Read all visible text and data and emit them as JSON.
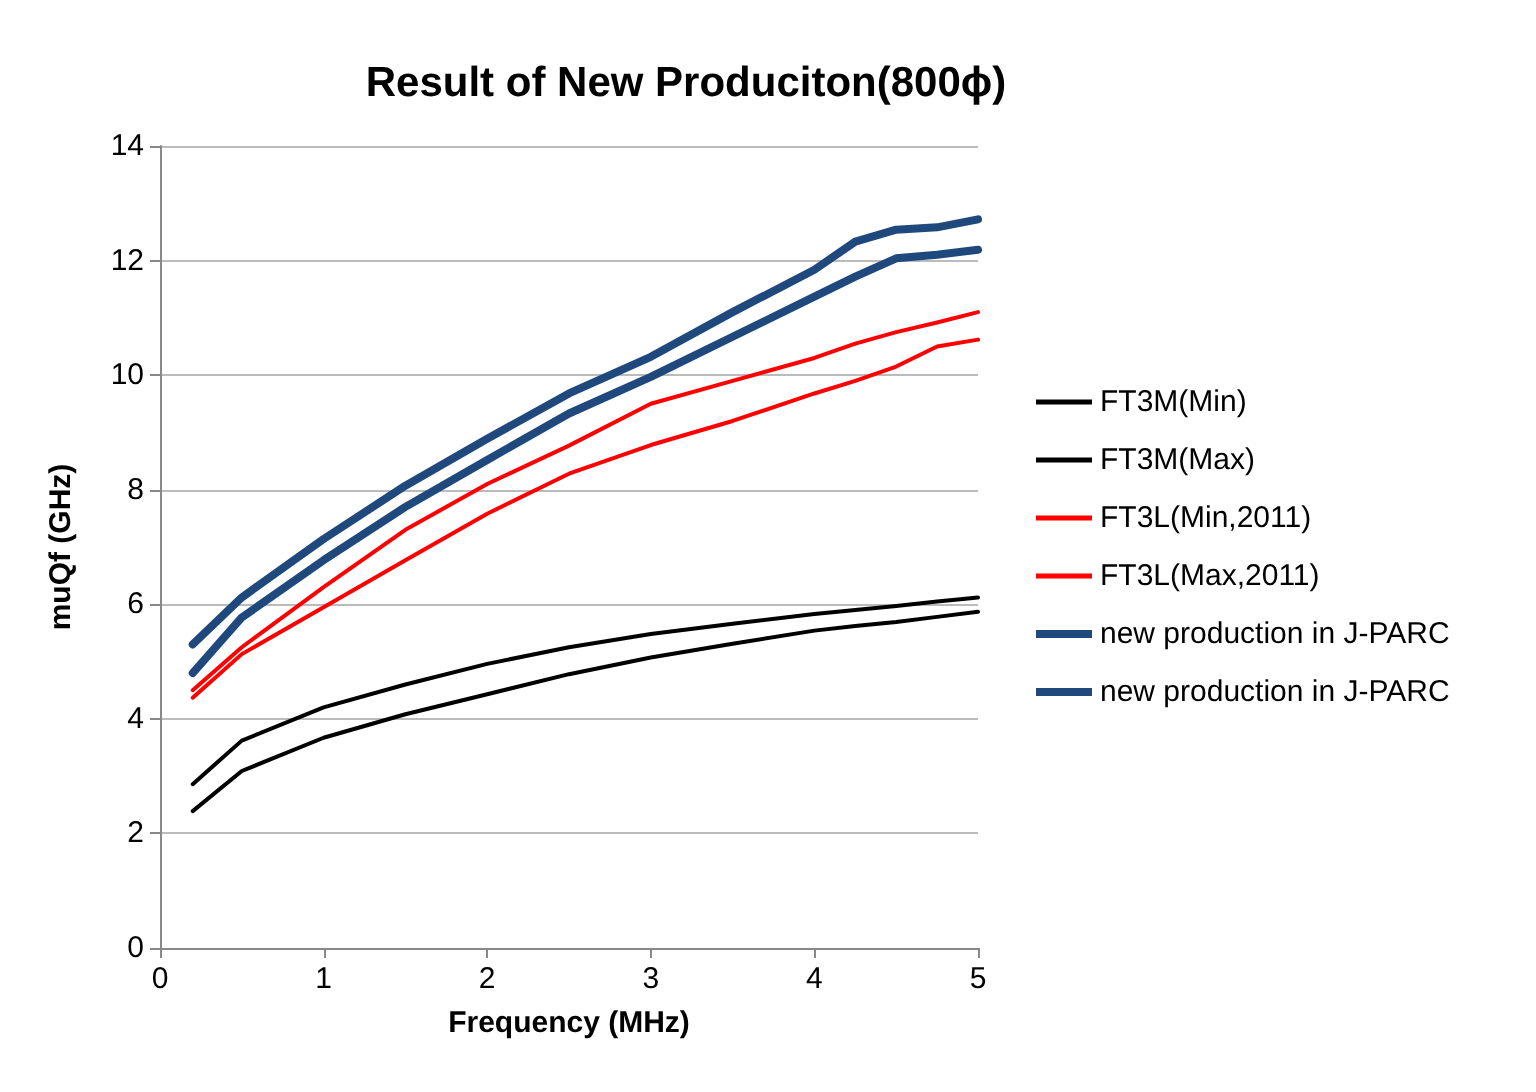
{
  "chart_data": {
    "type": "line",
    "title": "Result of New Produciton(800ϕ)",
    "xlabel": "Frequency (MHz)",
    "ylabel": "muQf (GHz)",
    "x": [
      0.2,
      0.5,
      1,
      1.5,
      2,
      2.5,
      3,
      3.5,
      4,
      4.25,
      4.5,
      4.75,
      5
    ],
    "series": [
      {
        "name": "FT3M(Min)",
        "color": "#000000",
        "values": [
          2.39,
          3.09,
          3.67,
          4.08,
          4.43,
          4.78,
          5.07,
          5.31,
          5.54,
          5.62,
          5.69,
          5.78,
          5.87
        ]
      },
      {
        "name": "FT3M(Max)",
        "color": "#000000",
        "values": [
          2.86,
          3.62,
          4.2,
          4.6,
          4.96,
          5.25,
          5.48,
          5.66,
          5.83,
          5.9,
          5.97,
          6.05,
          6.12
        ]
      },
      {
        "name": "FT3L(Min,2011)",
        "color": "#ff0000",
        "values": [
          4.37,
          5.13,
          5.95,
          6.77,
          7.58,
          8.28,
          8.78,
          9.2,
          9.68,
          9.9,
          10.15,
          10.5,
          10.62
        ]
      },
      {
        "name": "FT3L(Max,2011)",
        "color": "#ff0000",
        "values": [
          4.5,
          5.25,
          6.3,
          7.3,
          8.1,
          8.77,
          9.5,
          9.9,
          10.3,
          10.55,
          10.75,
          10.92,
          11.1
        ]
      },
      {
        "name": "new production in J-PARC",
        "color": "#1f497d",
        "values": [
          4.8,
          5.77,
          6.77,
          7.7,
          8.52,
          9.33,
          9.97,
          10.67,
          11.37,
          11.72,
          12.04,
          12.1,
          12.19
        ]
      },
      {
        "name": "new production in J-PARC",
        "color": "#1f497d",
        "values": [
          5.3,
          6.12,
          7.14,
          8.07,
          8.89,
          9.68,
          10.32,
          11.1,
          11.84,
          12.33,
          12.54,
          12.58,
          12.72
        ]
      }
    ],
    "xlim": [
      0,
      5
    ],
    "xticks": [
      0,
      1,
      2,
      3,
      4,
      5
    ],
    "ylim": [
      0,
      14
    ],
    "yticks": [
      0,
      2,
      4,
      6,
      8,
      10,
      12,
      14
    ],
    "grid": "y",
    "legend": "right",
    "marker": "none",
    "line_style": "solid"
  }
}
